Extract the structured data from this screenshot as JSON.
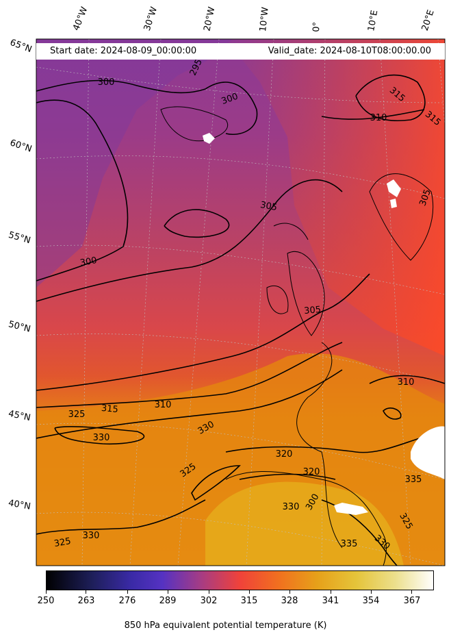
{
  "header": {
    "start_date": "Start date: 2024-08-09_00:00:00",
    "valid_date": "Valid_date: 2024-08-10T08:00:00.00"
  },
  "longitude_labels": [
    "40°W",
    "30°W",
    "20°W",
    "10°W",
    "0°",
    "10°E",
    "20°E"
  ],
  "latitude_labels": [
    "65°N",
    "60°N",
    "55°N",
    "50°N",
    "45°N",
    "40°N"
  ],
  "contour_labels": [
    "295",
    "300",
    "300",
    "300",
    "305",
    "305",
    "310",
    "310",
    "310",
    "315",
    "315",
    "315",
    "320",
    "320",
    "325",
    "325",
    "325",
    "325",
    "330",
    "330",
    "330",
    "330",
    "330",
    "335",
    "335",
    "300",
    "305"
  ],
  "colorbar": {
    "title": "850 hPa equivalent potential temperature (K)",
    "ticks": [
      "250",
      "263",
      "276",
      "289",
      "302",
      "315",
      "328",
      "341",
      "354",
      "367"
    ],
    "range": [
      250,
      378
    ],
    "colormap": "CMRmap-like",
    "stops": [
      "#000000",
      "#26267a",
      "#4b2ab8",
      "#8f3a98",
      "#e2413f",
      "#ff5a1a",
      "#e8902a",
      "#e8c83a",
      "#f2e79a",
      "#ffffff"
    ]
  }
}
